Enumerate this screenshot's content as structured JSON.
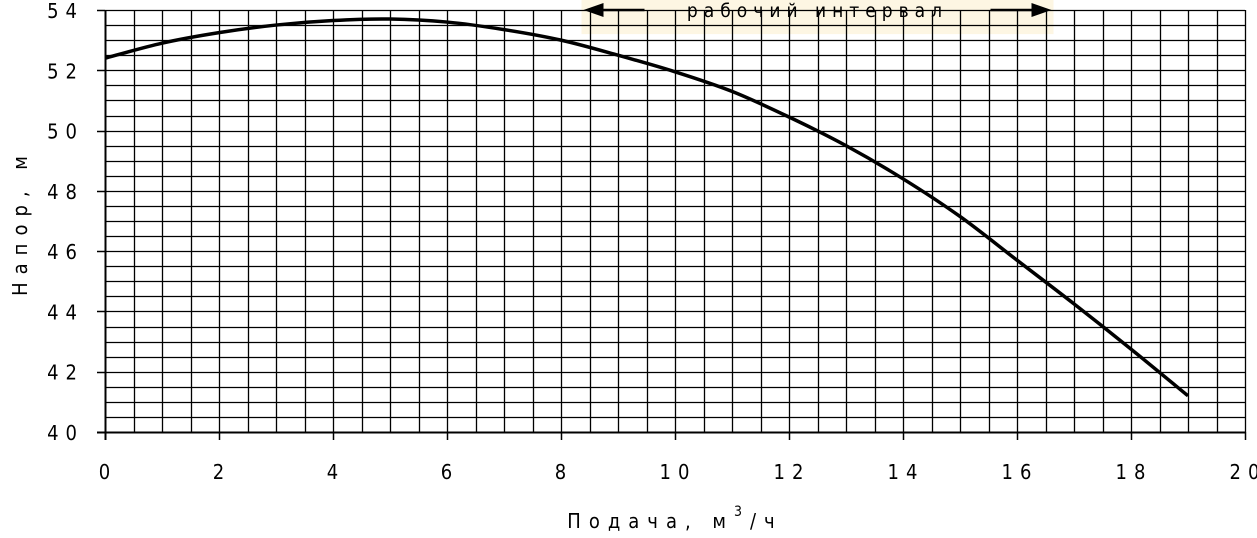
{
  "chart_data": {
    "type": "line",
    "title": "",
    "xlabel": "Подача, м",
    "xlabel_sup": "3",
    "xlabel_tail": "/ч",
    "ylabel": "Напор, м",
    "xlim": [
      0,
      20
    ],
    "ylim": [
      40,
      54
    ],
    "x_ticks": [
      "0",
      "2",
      "4",
      "6",
      "8",
      "10",
      "12",
      "14",
      "16",
      "18",
      "20"
    ],
    "y_ticks": [
      "40",
      "42",
      "44",
      "46",
      "48",
      "50",
      "52",
      "54"
    ],
    "grid": true,
    "annotation": {
      "text": "рабочий интервал",
      "x_start": 8.5,
      "x_end": 16.5,
      "background": "#fdf6e3"
    },
    "series": [
      {
        "x": [
          0,
          1,
          2,
          3,
          4,
          5,
          6,
          7,
          8,
          9,
          10,
          11,
          12,
          13,
          14,
          15,
          16,
          17,
          18,
          19
        ],
        "values": [
          52.4,
          52.9,
          53.25,
          53.5,
          53.65,
          53.7,
          53.6,
          53.35,
          53.0,
          52.5,
          51.95,
          51.3,
          50.45,
          49.5,
          48.4,
          47.15,
          45.7,
          44.25,
          42.75,
          41.2
        ]
      }
    ]
  }
}
